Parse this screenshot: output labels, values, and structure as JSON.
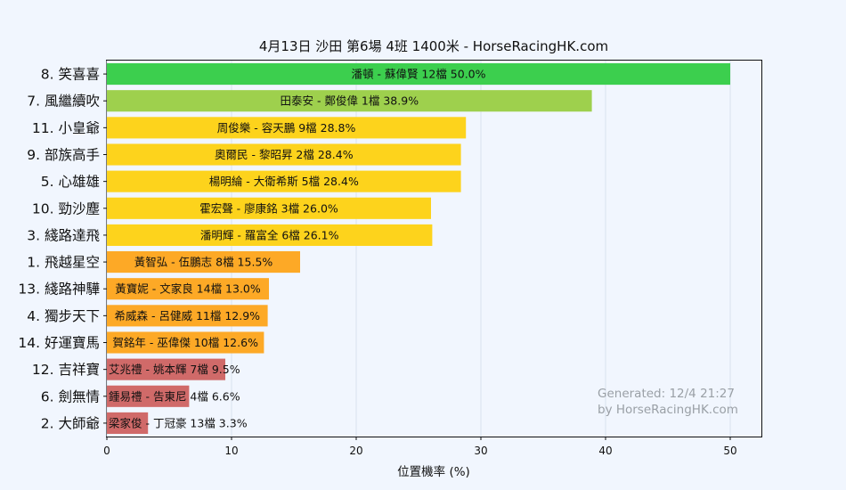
{
  "chart_data": {
    "type": "bar",
    "orientation": "horizontal",
    "title": "4月13日 沙田 第6場 4班 1400米 - HorseRacingHK.com",
    "xlabel": "位置機率 (%)",
    "ylabel": "",
    "xlim": [
      0,
      52.5
    ],
    "xticks": [
      0,
      10,
      20,
      30,
      40,
      50
    ],
    "grid": true,
    "categories": [
      "8. 笑喜喜",
      "7. 風繼續吹",
      "11. 小皇爺",
      "9. 部族高手",
      "5. 心雄雄",
      "10. 勁沙塵",
      "3. 綫路達飛",
      "1. 飛越星空",
      "13. 綫路神驊",
      "4. 獨步天下",
      "14. 好運寶馬",
      "12. 吉祥寶",
      "6. 劍無情",
      "2. 大師爺"
    ],
    "values": [
      50.0,
      38.9,
      28.8,
      28.4,
      28.4,
      26.0,
      26.1,
      15.5,
      13.0,
      12.9,
      12.6,
      9.5,
      6.6,
      3.3
    ],
    "bar_labels": [
      "潘頓 - 蘇偉賢 12檔  50.0%",
      "田泰安 - 鄭俊偉 1檔  38.9%",
      "周俊樂 - 容天鵬 9檔  28.8%",
      "奧爾民 - 黎昭昇 2檔  28.4%",
      "楊明綸 - 大衛希斯 5檔  28.4%",
      "霍宏聲 - 廖康銘 3檔  26.0%",
      "潘明輝 - 羅富全 6檔  26.1%",
      "黃智弘 - 伍鵬志 8檔  15.5%",
      "黃寶妮 - 文家良 14檔  13.0%",
      "希威森 - 呂健威 11檔  12.9%",
      "賀銘年 - 巫偉傑 10檔  12.6%",
      "艾兆禮 - 姚本輝 7檔  9.5%",
      "鍾易禮 - 告東尼 4檔  6.6%",
      "梁家俊 - 丁冠豪 13檔  3.3%"
    ],
    "colors": [
      "#3ccf4e",
      "#9ed04d",
      "#fdd31c",
      "#fdd31c",
      "#fdd31c",
      "#fdd31c",
      "#fdd31c",
      "#fda926",
      "#fda926",
      "#fda926",
      "#fda926",
      "#d06a69",
      "#d06a69",
      "#d06a69"
    ]
  },
  "watermark": {
    "line1": "Generated: 12/4 21:27",
    "line2": "by HorseRacingHK.com"
  }
}
